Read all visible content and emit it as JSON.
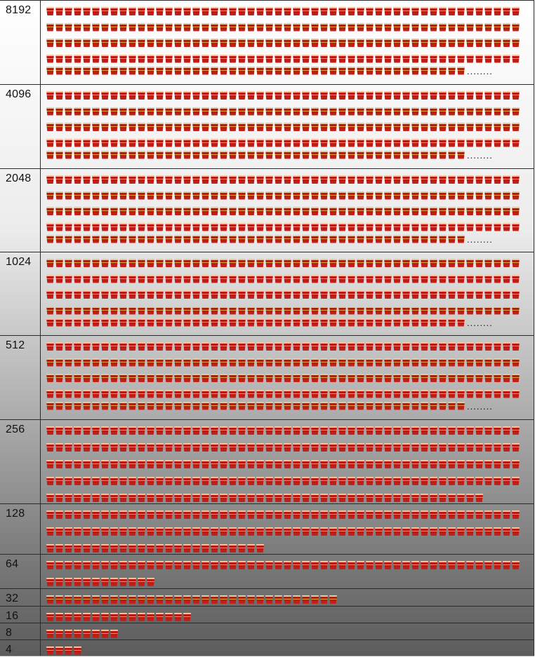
{
  "rows": [
    {
      "label": "8192",
      "count": 8192,
      "truncated": true,
      "ellipsis": "........"
    },
    {
      "label": "4096",
      "count": 4096,
      "truncated": true,
      "ellipsis": "........"
    },
    {
      "label": "2048",
      "count": 2048,
      "truncated": true,
      "ellipsis": "........"
    },
    {
      "label": "1024",
      "count": 1024,
      "truncated": true,
      "ellipsis": "........"
    },
    {
      "label": "512",
      "count": 512,
      "truncated": true,
      "ellipsis": "........"
    },
    {
      "label": "256",
      "count": 256,
      "truncated": false,
      "ellipsis": ""
    },
    {
      "label": "128",
      "count": 128,
      "truncated": false,
      "ellipsis": ""
    },
    {
      "label": "64",
      "count": 64,
      "truncated": false,
      "ellipsis": ""
    },
    {
      "label": "32",
      "count": 32,
      "truncated": false,
      "ellipsis": ""
    },
    {
      "label": "16",
      "count": 16,
      "truncated": false,
      "ellipsis": ""
    },
    {
      "label": "8",
      "count": 8,
      "truncated": false,
      "ellipsis": ""
    },
    {
      "label": "4",
      "count": 4,
      "truncated": false,
      "ellipsis": ""
    }
  ],
  "icon": "bucket-icon",
  "colors": {
    "bucket_red": "#b81810",
    "bucket_band": "#e6a23a",
    "bucket_rim": "#f1c3a0"
  }
}
